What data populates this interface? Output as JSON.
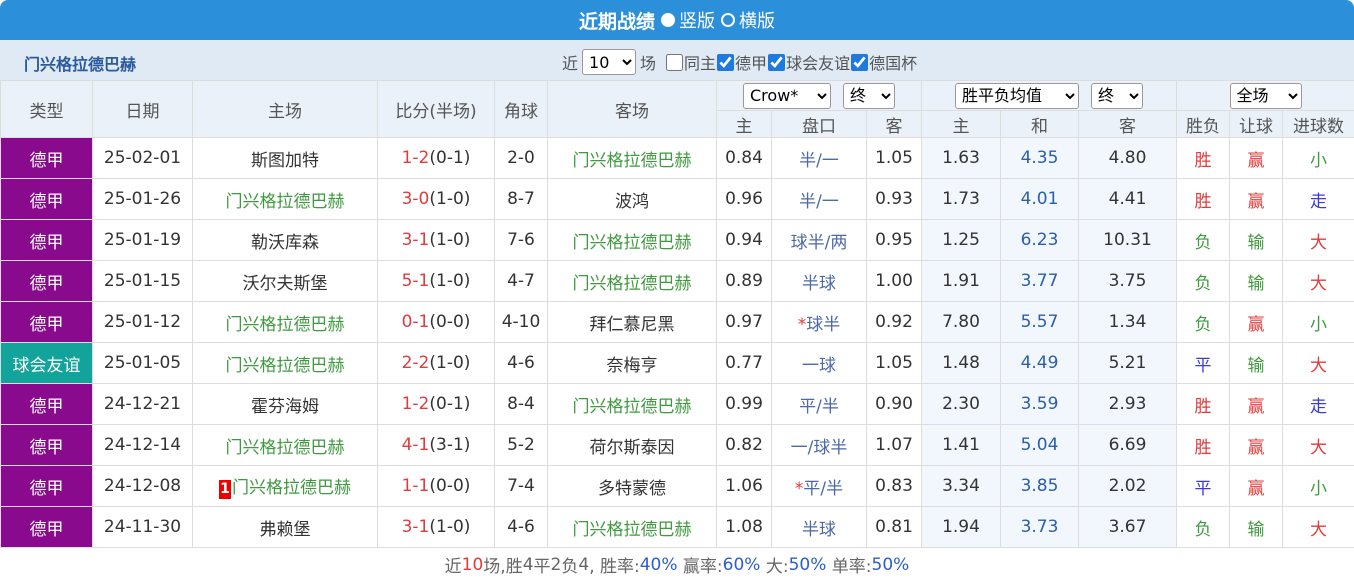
{
  "header": {
    "title": "近期战绩",
    "radios": [
      "竖版",
      "横版"
    ]
  },
  "filter": {
    "team": "门兴格拉德巴赫",
    "prefix": "近",
    "count": "10",
    "suffix": "场",
    "checks": [
      "同主",
      "德甲",
      "球会友谊",
      "德国杯"
    ],
    "checked": [
      false,
      true,
      true,
      true
    ]
  },
  "table": {
    "columns": [
      "类型",
      "日期",
      "主场",
      "比分(半场)",
      "角球",
      "客场"
    ],
    "odds_selects": [
      "Crow*",
      "终"
    ],
    "avg_selects": [
      "胜平负均值",
      "终"
    ],
    "full_select": "全场",
    "sub": [
      "主",
      "盘口",
      "客",
      "主",
      "和",
      "客",
      "胜负",
      "让球",
      "进球数"
    ],
    "type_colors": {
      "德甲": "#8a0a8e",
      "球会友谊": "#12a39b"
    },
    "result_colors": {
      "胜": "#e23b3b",
      "负": "#3f9a3f",
      "平": "#3a3ad8",
      "赢": "#e23b3b",
      "输": "#3f9a3f",
      "大": "#e23b3b",
      "小": "#3f9a3f",
      "走": "#3a3ad8"
    },
    "rows": [
      {
        "type": "德甲",
        "date": "25-02-01",
        "home": "斯图加特",
        "score": "1-2",
        "half": "(0-1)",
        "corner": "2-0",
        "away": "门兴格拉德巴赫",
        "oh": "0.84",
        "hc": "半/一",
        "oa": "1.05",
        "w": "1.63",
        "d": "4.35",
        "l": "4.80",
        "res": "胜",
        "rq": "赢",
        "goals": "小"
      },
      {
        "type": "德甲",
        "date": "25-01-26",
        "home": "门兴格拉德巴赫",
        "score": "3-0",
        "half": "(1-0)",
        "corner": "8-7",
        "away": "波鸿",
        "oh": "0.96",
        "hc": "半/一",
        "oa": "0.93",
        "w": "1.73",
        "d": "4.01",
        "l": "4.41",
        "res": "胜",
        "rq": "赢",
        "goals": "走"
      },
      {
        "type": "德甲",
        "date": "25-01-19",
        "home": "勒沃库森",
        "score": "3-1",
        "half": "(1-0)",
        "corner": "7-6",
        "away": "门兴格拉德巴赫",
        "oh": "0.94",
        "hc": "球半/两",
        "oa": "0.95",
        "w": "1.25",
        "d": "6.23",
        "l": "10.31",
        "res": "负",
        "rq": "输",
        "goals": "大"
      },
      {
        "type": "德甲",
        "date": "25-01-15",
        "home": "沃尔夫斯堡",
        "score": "5-1",
        "half": "(1-0)",
        "corner": "4-7",
        "away": "门兴格拉德巴赫",
        "oh": "0.89",
        "hc": "半球",
        "oa": "1.00",
        "w": "1.91",
        "d": "3.77",
        "l": "3.75",
        "res": "负",
        "rq": "输",
        "goals": "大"
      },
      {
        "type": "德甲",
        "date": "25-01-12",
        "home": "门兴格拉德巴赫",
        "score": "0-1",
        "half": "(0-0)",
        "corner": "4-10",
        "away": "拜仁慕尼黑",
        "oh": "0.97",
        "mark": "*",
        "hc": "球半",
        "oa": "0.92",
        "w": "7.80",
        "d": "5.57",
        "l": "1.34",
        "res": "负",
        "rq": "赢",
        "goals": "小"
      },
      {
        "type": "球会友谊",
        "date": "25-01-05",
        "home": "门兴格拉德巴赫",
        "score": "2-2",
        "half": "(1-0)",
        "corner": "4-6",
        "away": "奈梅亨",
        "oh": "0.77",
        "hc": "一球",
        "oa": "1.05",
        "w": "1.48",
        "d": "4.49",
        "l": "5.21",
        "res": "平",
        "rq": "输",
        "goals": "大"
      },
      {
        "type": "德甲",
        "date": "24-12-21",
        "home": "霍芬海姆",
        "score": "1-2",
        "half": "(0-1)",
        "corner": "8-4",
        "away": "门兴格拉德巴赫",
        "oh": "0.99",
        "hc": "平/半",
        "oa": "0.90",
        "w": "2.30",
        "d": "3.59",
        "l": "2.93",
        "res": "胜",
        "rq": "赢",
        "goals": "走"
      },
      {
        "type": "德甲",
        "date": "24-12-14",
        "home": "门兴格拉德巴赫",
        "score": "4-1",
        "half": "(3-1)",
        "corner": "5-2",
        "away": "荷尔斯泰因",
        "oh": "0.82",
        "hc": "一/球半",
        "oa": "1.07",
        "w": "1.41",
        "d": "5.04",
        "l": "6.69",
        "res": "胜",
        "rq": "赢",
        "goals": "大"
      },
      {
        "type": "德甲",
        "date": "24-12-08",
        "badge": "1",
        "home": "门兴格拉德巴赫",
        "score": "1-1",
        "half": "(0-0)",
        "corner": "7-4",
        "away": "多特蒙德",
        "oh": "1.06",
        "mark": "*",
        "hc": "平/半",
        "oa": "0.83",
        "w": "3.34",
        "d": "3.85",
        "l": "2.02",
        "res": "平",
        "rq": "赢",
        "goals": "小"
      },
      {
        "type": "德甲",
        "date": "24-11-30",
        "home": "弗赖堡",
        "score": "3-1",
        "half": "(1-0)",
        "corner": "4-6",
        "away": "门兴格拉德巴赫",
        "oh": "1.08",
        "hc": "半球",
        "oa": "0.81",
        "w": "1.94",
        "d": "3.73",
        "l": "3.67",
        "res": "负",
        "rq": "输",
        "goals": "大"
      }
    ]
  },
  "footer": [
    "近",
    "10",
    "场,胜",
    "4",
    "平",
    "2",
    "负",
    "4",
    ", 胜率:",
    "40%",
    " 赢率:",
    "60%",
    " 大:",
    "50%",
    " 单率:",
    "50%"
  ]
}
